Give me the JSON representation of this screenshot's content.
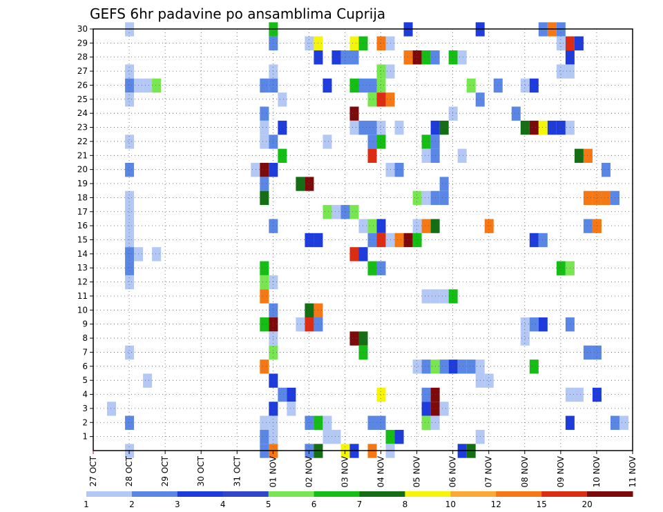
{
  "chart_data": {
    "type": "heatmap",
    "title": "GEFS 6hr padavine po ansamblima Cuprija",
    "xlabel": "",
    "ylabel": "",
    "x_ticks": [
      "27 OCT",
      "28 OCT",
      "29 OCT",
      "30 OCT",
      "31 OCT",
      "01 NOV",
      "02 NOV",
      "03 NOV",
      "04 NOV",
      "05 NOV",
      "06 NOV",
      "07 NOV",
      "08 NOV",
      "09 NOV",
      "10 NOV",
      "11 NOV"
    ],
    "xlim": [
      0,
      60
    ],
    "x_unit": "6-hour steps from 27 OCT",
    "y_ticks": [
      1,
      2,
      3,
      4,
      5,
      6,
      7,
      8,
      9,
      10,
      11,
      12,
      13,
      14,
      15,
      16,
      17,
      18,
      19,
      20,
      21,
      22,
      23,
      24,
      25,
      26,
      27,
      28,
      29,
      30
    ],
    "ylim": [
      0,
      30
    ],
    "grid": true,
    "colorbar": {
      "labels": [
        "1",
        "2",
        "3",
        "4",
        "5",
        "6",
        "7",
        "8",
        "10",
        "12",
        "15",
        "20"
      ],
      "colors": [
        "#b4c8f5",
        "#5a87e6",
        "#1e3cdc",
        "#3246c8",
        "#78e650",
        "#14be14",
        "#146e14",
        "#f5f50a",
        "#faaa32",
        "#f57814",
        "#dc2d14",
        "#7d0a0a"
      ]
    },
    "cells": [
      [
        30,
        4,
        0
      ],
      [
        30,
        20,
        5
      ],
      [
        30,
        35,
        2
      ],
      [
        30,
        43,
        2
      ],
      [
        30,
        50,
        1
      ],
      [
        30,
        51,
        9
      ],
      [
        30,
        52,
        1
      ],
      [
        29,
        20,
        1
      ],
      [
        29,
        24,
        0
      ],
      [
        29,
        25,
        7
      ],
      [
        29,
        29,
        7
      ],
      [
        29,
        30,
        5
      ],
      [
        29,
        32,
        9
      ],
      [
        29,
        33,
        0
      ],
      [
        29,
        52,
        0
      ],
      [
        29,
        53,
        10
      ],
      [
        29,
        54,
        2
      ],
      [
        28,
        25,
        2
      ],
      [
        28,
        27,
        2
      ],
      [
        28,
        28,
        1
      ],
      [
        28,
        29,
        1
      ],
      [
        28,
        35,
        9
      ],
      [
        28,
        36,
        11
      ],
      [
        28,
        37,
        5
      ],
      [
        28,
        38,
        1
      ],
      [
        28,
        40,
        5
      ],
      [
        28,
        41,
        0
      ],
      [
        28,
        53,
        2
      ],
      [
        27,
        4,
        0
      ],
      [
        27,
        20,
        0
      ],
      [
        27,
        32,
        4
      ],
      [
        27,
        33,
        0
      ],
      [
        27,
        52,
        0
      ],
      [
        27,
        53,
        0
      ],
      [
        26,
        4,
        1
      ],
      [
        26,
        5,
        0
      ],
      [
        26,
        6,
        0
      ],
      [
        26,
        7,
        4
      ],
      [
        26,
        19,
        1
      ],
      [
        26,
        20,
        1
      ],
      [
        26,
        26,
        2
      ],
      [
        26,
        29,
        5
      ],
      [
        26,
        30,
        1
      ],
      [
        26,
        31,
        1
      ],
      [
        26,
        32,
        4
      ],
      [
        26,
        42,
        4
      ],
      [
        26,
        45,
        1
      ],
      [
        26,
        48,
        0
      ],
      [
        26,
        49,
        2
      ],
      [
        25,
        4,
        0
      ],
      [
        25,
        21,
        0
      ],
      [
        25,
        31,
        4
      ],
      [
        25,
        32,
        10
      ],
      [
        25,
        33,
        9
      ],
      [
        25,
        43,
        1
      ],
      [
        24,
        19,
        1
      ],
      [
        24,
        29,
        11
      ],
      [
        24,
        40,
        0
      ],
      [
        24,
        47,
        1
      ],
      [
        23,
        19,
        0
      ],
      [
        23,
        21,
        2
      ],
      [
        23,
        29,
        0
      ],
      [
        23,
        30,
        1
      ],
      [
        23,
        31,
        1
      ],
      [
        23,
        32,
        0
      ],
      [
        23,
        34,
        0
      ],
      [
        23,
        38,
        2
      ],
      [
        23,
        39,
        6
      ],
      [
        23,
        48,
        6
      ],
      [
        23,
        49,
        11
      ],
      [
        23,
        50,
        7
      ],
      [
        23,
        51,
        2
      ],
      [
        23,
        52,
        2
      ],
      [
        23,
        53,
        0
      ],
      [
        22,
        4,
        0
      ],
      [
        22,
        19,
        0
      ],
      [
        22,
        20,
        1
      ],
      [
        22,
        26,
        0
      ],
      [
        22,
        31,
        1
      ],
      [
        22,
        32,
        5
      ],
      [
        22,
        37,
        5
      ],
      [
        22,
        38,
        1
      ],
      [
        21,
        21,
        5
      ],
      [
        21,
        31,
        10
      ],
      [
        21,
        37,
        0
      ],
      [
        21,
        38,
        1
      ],
      [
        21,
        41,
        0
      ],
      [
        21,
        54,
        6
      ],
      [
        21,
        55,
        9
      ],
      [
        20,
        4,
        1
      ],
      [
        20,
        18,
        0
      ],
      [
        20,
        19,
        11
      ],
      [
        20,
        20,
        2
      ],
      [
        20,
        33,
        0
      ],
      [
        20,
        34,
        1
      ],
      [
        20,
        57,
        1
      ],
      [
        19,
        19,
        1
      ],
      [
        19,
        23,
        6
      ],
      [
        19,
        24,
        11
      ],
      [
        19,
        39,
        1
      ],
      [
        18,
        4,
        0
      ],
      [
        18,
        19,
        6
      ],
      [
        18,
        36,
        4
      ],
      [
        18,
        37,
        0
      ],
      [
        18,
        38,
        1
      ],
      [
        18,
        39,
        1
      ],
      [
        18,
        55,
        9
      ],
      [
        18,
        56,
        9
      ],
      [
        18,
        57,
        9
      ],
      [
        18,
        58,
        1
      ],
      [
        17,
        4,
        0
      ],
      [
        17,
        26,
        4
      ],
      [
        17,
        27,
        0
      ],
      [
        17,
        28,
        1
      ],
      [
        17,
        29,
        4
      ],
      [
        16,
        4,
        0
      ],
      [
        16,
        20,
        1
      ],
      [
        16,
        30,
        0
      ],
      [
        16,
        31,
        4
      ],
      [
        16,
        32,
        2
      ],
      [
        16,
        36,
        0
      ],
      [
        16,
        37,
        9
      ],
      [
        16,
        38,
        6
      ],
      [
        16,
        44,
        9
      ],
      [
        16,
        55,
        1
      ],
      [
        16,
        56,
        9
      ],
      [
        15,
        4,
        0
      ],
      [
        15,
        24,
        2
      ],
      [
        15,
        25,
        2
      ],
      [
        15,
        31,
        1
      ],
      [
        15,
        32,
        10
      ],
      [
        15,
        33,
        0
      ],
      [
        15,
        34,
        9
      ],
      [
        15,
        35,
        11
      ],
      [
        15,
        36,
        5
      ],
      [
        15,
        49,
        2
      ],
      [
        15,
        50,
        1
      ],
      [
        14,
        4,
        1
      ],
      [
        14,
        5,
        0
      ],
      [
        14,
        7,
        0
      ],
      [
        14,
        29,
        10
      ],
      [
        14,
        30,
        2
      ],
      [
        13,
        4,
        1
      ],
      [
        13,
        19,
        5
      ],
      [
        13,
        31,
        5
      ],
      [
        13,
        32,
        1
      ],
      [
        13,
        52,
        5
      ],
      [
        13,
        53,
        4
      ],
      [
        12,
        4,
        0
      ],
      [
        12,
        19,
        4
      ],
      [
        12,
        20,
        0
      ],
      [
        11,
        19,
        9
      ],
      [
        11,
        37,
        0
      ],
      [
        11,
        38,
        0
      ],
      [
        11,
        39,
        0
      ],
      [
        11,
        40,
        5
      ],
      [
        10,
        20,
        1
      ],
      [
        10,
        24,
        6
      ],
      [
        10,
        25,
        9
      ],
      [
        9,
        19,
        5
      ],
      [
        9,
        20,
        11
      ],
      [
        9,
        23,
        0
      ],
      [
        9,
        24,
        10
      ],
      [
        9,
        25,
        1
      ],
      [
        9,
        48,
        0
      ],
      [
        9,
        49,
        1
      ],
      [
        9,
        50,
        2
      ],
      [
        9,
        53,
        1
      ],
      [
        8,
        20,
        0
      ],
      [
        8,
        29,
        11
      ],
      [
        8,
        30,
        6
      ],
      [
        8,
        48,
        0
      ],
      [
        7,
        4,
        0
      ],
      [
        7,
        20,
        4
      ],
      [
        7,
        30,
        5
      ],
      [
        7,
        55,
        1
      ],
      [
        7,
        56,
        1
      ],
      [
        6,
        19,
        9
      ],
      [
        6,
        36,
        0
      ],
      [
        6,
        37,
        1
      ],
      [
        6,
        38,
        4
      ],
      [
        6,
        39,
        1
      ],
      [
        6,
        40,
        2
      ],
      [
        6,
        41,
        1
      ],
      [
        6,
        42,
        1
      ],
      [
        6,
        43,
        0
      ],
      [
        6,
        49,
        5
      ],
      [
        5,
        6,
        0
      ],
      [
        5,
        20,
        2
      ],
      [
        5,
        43,
        0
      ],
      [
        5,
        44,
        0
      ],
      [
        4,
        21,
        1
      ],
      [
        4,
        22,
        2
      ],
      [
        4,
        32,
        7
      ],
      [
        4,
        37,
        1
      ],
      [
        4,
        38,
        11
      ],
      [
        4,
        53,
        0
      ],
      [
        4,
        54,
        0
      ],
      [
        4,
        56,
        2
      ],
      [
        3,
        2,
        0
      ],
      [
        3,
        20,
        2
      ],
      [
        3,
        22,
        0
      ],
      [
        3,
        37,
        2
      ],
      [
        3,
        38,
        11
      ],
      [
        3,
        39,
        0
      ],
      [
        2,
        4,
        1
      ],
      [
        2,
        19,
        0
      ],
      [
        2,
        20,
        0
      ],
      [
        2,
        24,
        1
      ],
      [
        2,
        25,
        5
      ],
      [
        2,
        26,
        0
      ],
      [
        2,
        31,
        1
      ],
      [
        2,
        32,
        1
      ],
      [
        2,
        37,
        4
      ],
      [
        2,
        38,
        0
      ],
      [
        2,
        53,
        2
      ],
      [
        2,
        58,
        1
      ],
      [
        2,
        59,
        0
      ],
      [
        1,
        19,
        1
      ],
      [
        1,
        20,
        0
      ],
      [
        1,
        26,
        0
      ],
      [
        1,
        27,
        0
      ],
      [
        1,
        33,
        5
      ],
      [
        1,
        34,
        2
      ],
      [
        1,
        43,
        0
      ],
      [
        0,
        4,
        0
      ],
      [
        0,
        19,
        1
      ],
      [
        0,
        20,
        9
      ],
      [
        0,
        24,
        1
      ],
      [
        0,
        25,
        6
      ],
      [
        0,
        28,
        7
      ],
      [
        0,
        29,
        2
      ],
      [
        0,
        31,
        9
      ],
      [
        0,
        33,
        0
      ],
      [
        0,
        41,
        2
      ],
      [
        0,
        42,
        6
      ]
    ]
  }
}
